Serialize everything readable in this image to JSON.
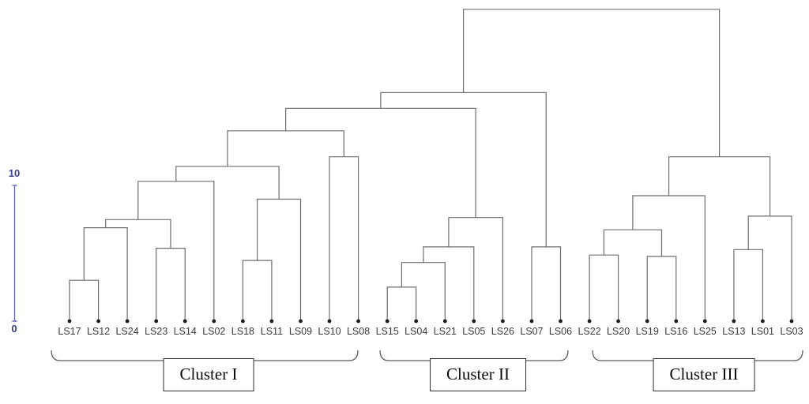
{
  "chart_data": {
    "type": "dendrogram",
    "orientation": "top-rooted, leaves at bottom",
    "title": "",
    "line_color": "#6e6e6e",
    "leaf_label_color": "#3a3a3a",
    "scale_bar": {
      "min": 0,
      "max": 10,
      "min_label": "0",
      "max_label": "10",
      "line_color": "#6a6bb8",
      "text_color": "#3c3c8f"
    },
    "leaves": [
      "LS17",
      "LS12",
      "LS24",
      "LS23",
      "LS14",
      "LS02",
      "LS18",
      "LS11",
      "LS09",
      "LS10",
      "LS08",
      "LS15",
      "LS04",
      "LS21",
      "LS05",
      "LS26",
      "LS07",
      "LS06",
      "LS22",
      "LS20",
      "LS19",
      "LS16",
      "LS25",
      "LS13",
      "LS01",
      "LS03"
    ],
    "merges": [
      {
        "id": "m1",
        "children": [
          "LS17",
          "LS12"
        ],
        "height": 3.05
      },
      {
        "id": "m2",
        "children": [
          "m1",
          "LS24"
        ],
        "height": 6.9
      },
      {
        "id": "m3",
        "children": [
          "LS23",
          "LS14"
        ],
        "height": 5.4
      },
      {
        "id": "m4",
        "children": [
          "m2",
          "m3"
        ],
        "height": 7.5
      },
      {
        "id": "m5",
        "children": [
          "m4",
          "LS02"
        ],
        "height": 10.3
      },
      {
        "id": "m6",
        "children": [
          "LS18",
          "LS11"
        ],
        "height": 4.5
      },
      {
        "id": "m7",
        "children": [
          "m6",
          "LS09"
        ],
        "height": 9.0
      },
      {
        "id": "m8",
        "children": [
          "m5",
          "m7"
        ],
        "height": 11.4
      },
      {
        "id": "m9",
        "children": [
          "LS10",
          "LS08"
        ],
        "height": 12.1
      },
      {
        "id": "m10",
        "children": [
          "m8",
          "m9"
        ],
        "height": 14.0
      },
      {
        "id": "m11",
        "children": [
          "LS15",
          "LS04"
        ],
        "height": 2.55
      },
      {
        "id": "m12",
        "children": [
          "m11",
          "LS21"
        ],
        "height": 4.35
      },
      {
        "id": "m13",
        "children": [
          "m12",
          "LS05"
        ],
        "height": 5.5
      },
      {
        "id": "m14",
        "children": [
          "m13",
          "LS26"
        ],
        "height": 7.65
      },
      {
        "id": "m15",
        "children": [
          "LS07",
          "LS06"
        ],
        "height": 5.5
      },
      {
        "id": "m16",
        "children": [
          "m10",
          "m14"
        ],
        "height": 15.65
      },
      {
        "id": "m17",
        "children": [
          "m16",
          "m15"
        ],
        "height": 16.8
      },
      {
        "id": "m18",
        "children": [
          "LS22",
          "LS20"
        ],
        "height": 4.9
      },
      {
        "id": "m19",
        "children": [
          "LS19",
          "LS16"
        ],
        "height": 4.8
      },
      {
        "id": "m20",
        "children": [
          "m18",
          "m19"
        ],
        "height": 6.75
      },
      {
        "id": "m21",
        "children": [
          "m20",
          "LS25"
        ],
        "height": 9.25
      },
      {
        "id": "m22",
        "children": [
          "LS13",
          "LS01"
        ],
        "height": 5.3
      },
      {
        "id": "m23",
        "children": [
          "m22",
          "LS03"
        ],
        "height": 7.75
      },
      {
        "id": "m24",
        "children": [
          "m21",
          "m23"
        ],
        "height": 12.1
      },
      {
        "id": "m25",
        "children": [
          "m17",
          "m24"
        ],
        "height": 22.9
      }
    ],
    "clusters": [
      {
        "label": "Cluster I",
        "from_leaf": "LS17",
        "to_leaf": "LS08"
      },
      {
        "label": "Cluster II",
        "from_leaf": "LS15",
        "to_leaf": "LS06"
      },
      {
        "label": "Cluster III",
        "from_leaf": "LS22",
        "to_leaf": "LS03"
      }
    ]
  }
}
